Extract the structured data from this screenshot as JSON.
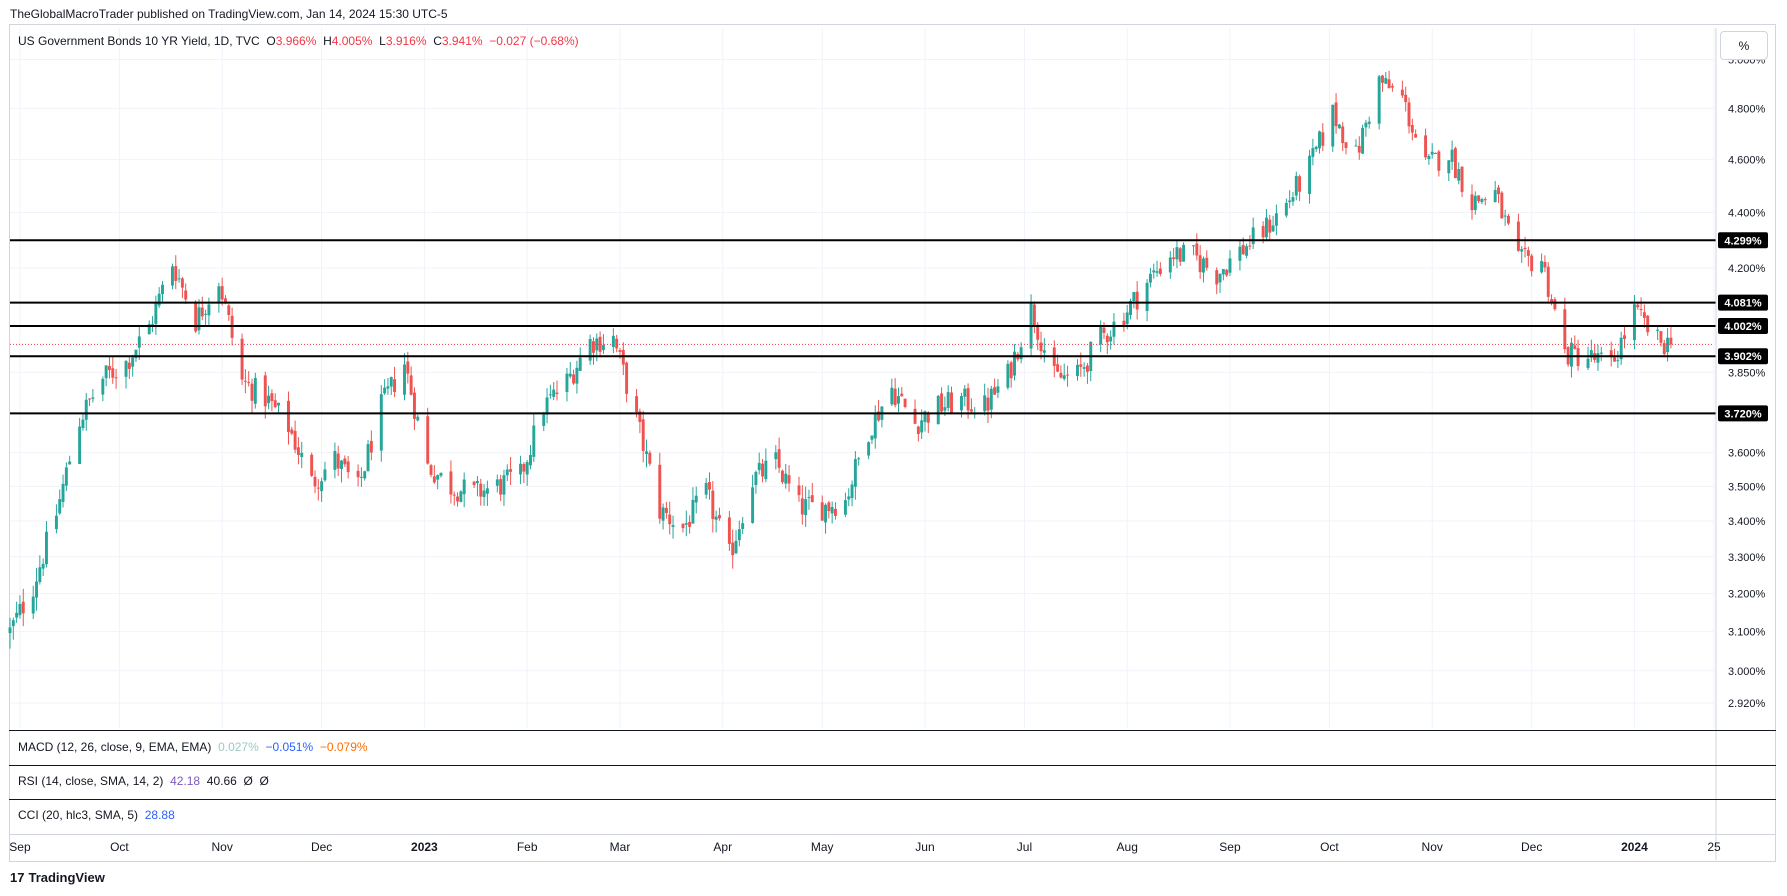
{
  "header": {
    "published": "TheGlobalMacroTrader published on TradingView.com, Jan 14, 2024 15:30 UTC-5"
  },
  "legend": {
    "symbol": "US Government Bonds 10 YR Yield, 1D, TVC",
    "o_label": "O",
    "o_value": "3.966%",
    "h_label": "H",
    "h_value": "4.005%",
    "l_label": "L",
    "l_value": "3.916%",
    "c_label": "C",
    "c_value": "3.941%",
    "change": "−0.027 (−0.68%)"
  },
  "unit_button": "%",
  "colors": {
    "up": "#26a69a",
    "down": "#ef5350",
    "level_line": "#000000",
    "grid": "#f0f3fa",
    "last_price": "#f23645"
  },
  "indicators": {
    "macd": {
      "label": "MACD (12, 26, close, 9, EMA, EMA)",
      "v1": "0.027%",
      "v1_color": "#9ec9c5",
      "v2": "−0.051%",
      "v2_color": "#2962ff",
      "v3": "−0.079%",
      "v3_color": "#ff6d00"
    },
    "rsi": {
      "label": "RSI (14, close, SMA, 14, 2)",
      "v1": "42.18",
      "v1_color": "#7e57c2",
      "v2": "40.66",
      "v2_color": "#131722",
      "v3": "Ø",
      "v4": "Ø"
    },
    "cci": {
      "label": "CCI (20, hlc3, SMA, 5)",
      "v1": "28.88",
      "v1_color": "#2962ff"
    }
  },
  "branding": {
    "logo_text": "TradingView",
    "logo_mark": "17"
  },
  "chart_data": {
    "type": "candlestick",
    "title": "US Government Bonds 10 YR Yield, 1D, TVC",
    "ylim": [
      2.86,
      5.04
    ],
    "y_scale": "log",
    "x_start": "2022-08-29",
    "x_end": "2024-01-25",
    "grid": true,
    "y_ticks": [
      "5.000%",
      "4.800%",
      "4.600%",
      "4.400%",
      "4.200%",
      "3.850%",
      "3.600%",
      "3.500%",
      "3.400%",
      "3.300%",
      "3.200%",
      "3.100%",
      "3.000%",
      "2.920%"
    ],
    "y_tick_values": [
      5.0,
      4.8,
      4.6,
      4.4,
      4.2,
      3.85,
      3.6,
      3.5,
      3.4,
      3.3,
      3.2,
      3.1,
      3.0,
      2.92
    ],
    "x_ticks": [
      {
        "label": "Sep",
        "date": "2022-09-01",
        "bold": false
      },
      {
        "label": "Oct",
        "date": "2022-10-01",
        "bold": false
      },
      {
        "label": "Nov",
        "date": "2022-11-01",
        "bold": false
      },
      {
        "label": "Dec",
        "date": "2022-12-01",
        "bold": false
      },
      {
        "label": "2023",
        "date": "2023-01-01",
        "bold": true
      },
      {
        "label": "Feb",
        "date": "2023-02-01",
        "bold": false
      },
      {
        "label": "Mar",
        "date": "2023-03-01",
        "bold": false
      },
      {
        "label": "Apr",
        "date": "2023-04-01",
        "bold": false
      },
      {
        "label": "May",
        "date": "2023-05-01",
        "bold": false
      },
      {
        "label": "Jun",
        "date": "2023-06-01",
        "bold": false
      },
      {
        "label": "Jul",
        "date": "2023-07-01",
        "bold": false
      },
      {
        "label": "Aug",
        "date": "2023-08-01",
        "bold": false
      },
      {
        "label": "Sep",
        "date": "2023-09-01",
        "bold": false
      },
      {
        "label": "Oct",
        "date": "2023-10-01",
        "bold": false
      },
      {
        "label": "Nov",
        "date": "2023-11-01",
        "bold": false
      },
      {
        "label": "Dec",
        "date": "2023-12-01",
        "bold": false
      },
      {
        "label": "2024",
        "date": "2024-01-01",
        "bold": true
      },
      {
        "label": "25",
        "date": "2024-01-25",
        "bold": false
      }
    ],
    "horizontal_levels": [
      {
        "value": 4.299,
        "label": "4.299%"
      },
      {
        "value": 4.081,
        "label": "4.081%"
      },
      {
        "value": 4.002,
        "label": "4.002%"
      },
      {
        "value": 3.902,
        "label": "3.902%"
      },
      {
        "value": 3.72,
        "label": "3.720%"
      }
    ],
    "last_price": 3.941,
    "series": [
      {
        "name": "Close",
        "path": [
          [
            "2022-08-29",
            3.1
          ],
          [
            "2022-09-05",
            3.22
          ],
          [
            "2022-09-12",
            3.42
          ],
          [
            "2022-09-19",
            3.7
          ],
          [
            "2022-09-26",
            3.83
          ],
          [
            "2022-10-03",
            3.88
          ],
          [
            "2022-10-10",
            4.0
          ],
          [
            "2022-10-17",
            4.22
          ],
          [
            "2022-10-24",
            4.02
          ],
          [
            "2022-10-31",
            4.16
          ],
          [
            "2022-11-07",
            3.82
          ],
          [
            "2022-11-14",
            3.77
          ],
          [
            "2022-11-21",
            3.68
          ],
          [
            "2022-11-28",
            3.51
          ],
          [
            "2022-12-05",
            3.58
          ],
          [
            "2022-12-12",
            3.49
          ],
          [
            "2022-12-19",
            3.74
          ],
          [
            "2022-12-26",
            3.88
          ],
          [
            "2023-01-02",
            3.56
          ],
          [
            "2023-01-09",
            3.5
          ],
          [
            "2023-01-16",
            3.48
          ],
          [
            "2023-01-23",
            3.5
          ],
          [
            "2023-01-30",
            3.53
          ],
          [
            "2023-02-06",
            3.74
          ],
          [
            "2023-02-13",
            3.82
          ],
          [
            "2023-02-20",
            3.95
          ],
          [
            "2023-02-27",
            3.96
          ],
          [
            "2023-03-06",
            3.7
          ],
          [
            "2023-03-13",
            3.43
          ],
          [
            "2023-03-20",
            3.38
          ],
          [
            "2023-03-27",
            3.48
          ],
          [
            "2023-04-03",
            3.3
          ],
          [
            "2023-04-10",
            3.52
          ],
          [
            "2023-04-17",
            3.57
          ],
          [
            "2023-04-24",
            3.44
          ],
          [
            "2023-05-01",
            3.44
          ],
          [
            "2023-05-08",
            3.46
          ],
          [
            "2023-05-15",
            3.67
          ],
          [
            "2023-05-22",
            3.8
          ],
          [
            "2023-05-29",
            3.69
          ],
          [
            "2023-06-05",
            3.74
          ],
          [
            "2023-06-12",
            3.76
          ],
          [
            "2023-06-19",
            3.74
          ],
          [
            "2023-06-26",
            3.84
          ],
          [
            "2023-07-03",
            4.06
          ],
          [
            "2023-07-10",
            3.83
          ],
          [
            "2023-07-17",
            3.84
          ],
          [
            "2023-07-24",
            3.96
          ],
          [
            "2023-07-31",
            4.04
          ],
          [
            "2023-08-07",
            4.15
          ],
          [
            "2023-08-14",
            4.25
          ],
          [
            "2023-08-21",
            4.24
          ],
          [
            "2023-08-28",
            4.18
          ],
          [
            "2023-09-04",
            4.26
          ],
          [
            "2023-09-11",
            4.33
          ],
          [
            "2023-09-18",
            4.43
          ],
          [
            "2023-09-25",
            4.57
          ],
          [
            "2023-10-02",
            4.78
          ],
          [
            "2023-10-09",
            4.61
          ],
          [
            "2023-10-16",
            4.91
          ],
          [
            "2023-10-23",
            4.84
          ],
          [
            "2023-10-30",
            4.57
          ],
          [
            "2023-11-06",
            4.63
          ],
          [
            "2023-11-13",
            4.44
          ],
          [
            "2023-11-20",
            4.47
          ],
          [
            "2023-11-27",
            4.22
          ],
          [
            "2023-12-04",
            4.23
          ],
          [
            "2023-12-11",
            3.91
          ],
          [
            "2023-12-18",
            3.9
          ],
          [
            "2023-12-25",
            3.87
          ],
          [
            "2024-01-01",
            4.05
          ],
          [
            "2024-01-08",
            3.95
          ],
          [
            "2024-01-12",
            3.941
          ]
        ]
      }
    ]
  }
}
